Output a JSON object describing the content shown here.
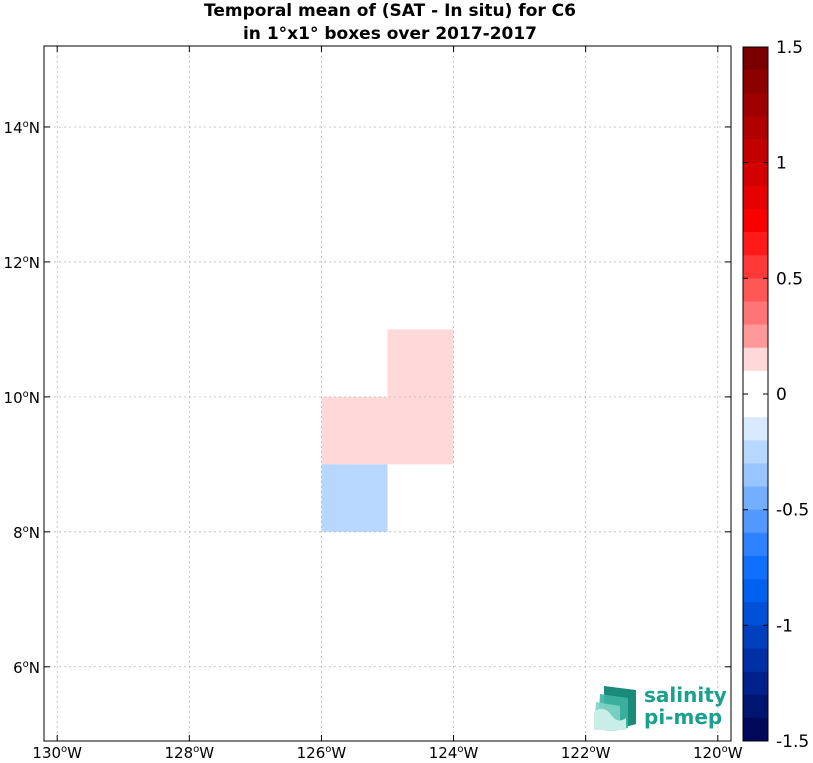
{
  "chart_data": {
    "type": "heatmap",
    "title": [
      "Temporal mean of (SAT - In situ) for C6",
      "in 1°x1° boxes over 2017-2017"
    ],
    "xlim": [
      -130.2,
      -119.8
    ],
    "ylim": [
      4.9,
      15.2
    ],
    "x_ticks": [
      -130,
      -128,
      -126,
      -124,
      -122,
      -120
    ],
    "y_ticks": [
      6,
      8,
      10,
      12,
      14
    ],
    "x_tick_labels": [
      {
        "num": "130",
        "deg": "o",
        "hemi": "W"
      },
      {
        "num": "128",
        "deg": "o",
        "hemi": "W"
      },
      {
        "num": "126",
        "deg": "o",
        "hemi": "W"
      },
      {
        "num": "124",
        "deg": "o",
        "hemi": "W"
      },
      {
        "num": "122",
        "deg": "o",
        "hemi": "W"
      },
      {
        "num": "120",
        "deg": "o",
        "hemi": "W"
      }
    ],
    "y_tick_labels": [
      {
        "num": "6",
        "deg": "o",
        "hemi": "N"
      },
      {
        "num": "8",
        "deg": "o",
        "hemi": "N"
      },
      {
        "num": "10",
        "deg": "o",
        "hemi": "N"
      },
      {
        "num": "12",
        "deg": "o",
        "hemi": "N"
      },
      {
        "num": "14",
        "deg": "o",
        "hemi": "N"
      }
    ],
    "grid": true,
    "cells": [
      {
        "lon0": -125,
        "lon1": -124,
        "lat0": 10,
        "lat1": 11,
        "value": 0.15
      },
      {
        "lon0": -126,
        "lon1": -125,
        "lat0": 9,
        "lat1": 10,
        "value": 0.15
      },
      {
        "lon0": -125,
        "lon1": -124,
        "lat0": 9,
        "lat1": 10,
        "value": 0.15
      },
      {
        "lon0": -126,
        "lon1": -125,
        "lat0": 8,
        "lat1": 9,
        "value": -0.25
      }
    ],
    "colorbar": {
      "range": [
        -1.5,
        1.5
      ],
      "ticks": [
        1.5,
        1,
        0.5,
        0,
        -0.5,
        -1,
        -1.5
      ],
      "tick_labels": [
        "1.5",
        "1",
        "0.5",
        "0",
        "-0.5",
        "-1",
        "-1.5"
      ],
      "colors": [
        "#7a0000",
        "#8c0000",
        "#9e0000",
        "#b00000",
        "#c20000",
        "#d40000",
        "#e60000",
        "#f80000",
        "#ff1a1a",
        "#ff3838",
        "#ff5656",
        "#ff7474",
        "#ff9898",
        "#ffd9d9",
        "#ffffff",
        "#ffffff",
        "#d9e9ff",
        "#b8d7ff",
        "#98c5ff",
        "#74aeff",
        "#5298ff",
        "#2f82ff",
        "#0f6fff",
        "#0060f0",
        "#0050d8",
        "#0040bf",
        "#0030a5",
        "#00208c",
        "#001570",
        "#00085a"
      ]
    }
  },
  "logo": {
    "line1": "salinity",
    "line2": "pi-mep",
    "color": "#1aa08f"
  }
}
